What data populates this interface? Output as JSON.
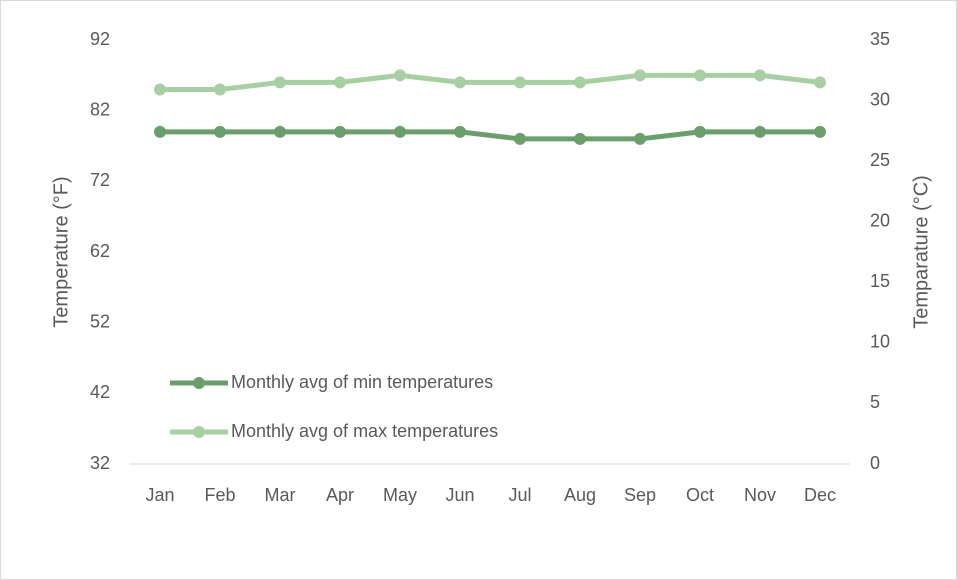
{
  "chart_data": {
    "type": "line",
    "categories": [
      "Jan",
      "Feb",
      "Mar",
      "Apr",
      "May",
      "Jun",
      "Jul",
      "Aug",
      "Sep",
      "Oct",
      "Nov",
      "Dec"
    ],
    "series": [
      {
        "name": "Monthly avg of min temperatures",
        "color": "#6b9e6d",
        "values": [
          79,
          79,
          79,
          79,
          79,
          79,
          78,
          78,
          78,
          79,
          79,
          79
        ]
      },
      {
        "name": "Monthly avg of max temperatures",
        "color": "#a8cfa3",
        "values": [
          85,
          85,
          86,
          86,
          87,
          86,
          86,
          86,
          87,
          87,
          87,
          86
        ]
      }
    ],
    "ylabel": "Temperature (°F)",
    "y2label": "Temparature (°C)",
    "ylim": [
      32,
      92
    ],
    "yticks": [
      32,
      42,
      52,
      62,
      72,
      82,
      92
    ],
    "y2lim": [
      0,
      35
    ],
    "y2ticks": [
      0,
      5,
      10,
      15,
      20,
      25,
      30,
      35
    ],
    "grid": false,
    "legend": "lower left"
  }
}
